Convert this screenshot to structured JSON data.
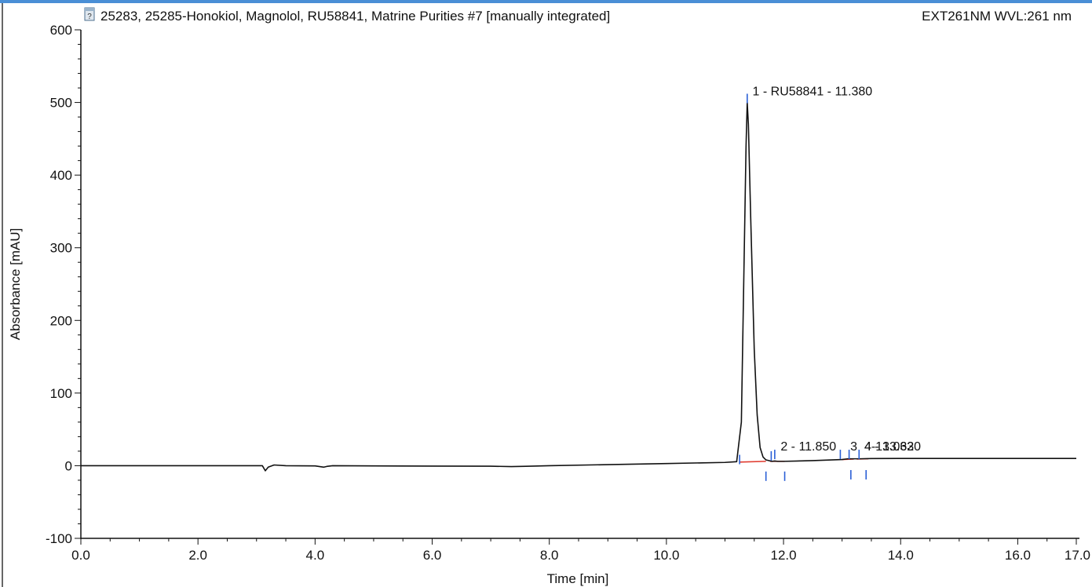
{
  "chart_data": {
    "type": "line",
    "title": "25283, 25285-Honokiol, Magnolol, RU58841, Matrine Purities #7 [manually integrated]",
    "channel": "EXT261NM WVL:261 nm",
    "xlabel": "Time [min]",
    "ylabel": "Absorbance [mAU]",
    "xlim": [
      0,
      17
    ],
    "ylim": [
      -100,
      600
    ],
    "x_ticks": [
      "0.0",
      "2.0",
      "4.0",
      "6.0",
      "8.0",
      "10.0",
      "12.0",
      "14.0",
      "16.0",
      "17.0"
    ],
    "y_ticks": [
      "600",
      "500",
      "400",
      "300",
      "200",
      "100",
      "0",
      "-100"
    ],
    "colors": {
      "trace": "#111111",
      "baseline": "#e03a2e",
      "marker": "#2a5fd6",
      "axis": "#111111",
      "top_band": "#4a8fd6"
    },
    "series": [
      {
        "x": [
          0,
          2,
          3.1,
          3.15,
          3.2,
          3.3,
          3.5,
          4.0,
          4.15,
          4.2,
          4.3,
          5.0,
          6.0,
          7.0,
          7.35,
          7.6,
          8.0,
          9.0,
          10.0,
          11.0,
          11.2,
          11.28,
          11.32,
          11.36,
          11.38,
          11.4,
          11.44,
          11.5,
          11.55,
          11.6,
          11.65,
          11.7,
          11.8,
          11.85,
          11.9,
          12.0,
          12.5,
          13.0,
          13.1,
          13.3,
          13.5,
          14.0,
          15.0,
          16.0,
          17.0
        ],
        "y": [
          0,
          0,
          0,
          -7,
          -2,
          1,
          0,
          -0.3,
          -2,
          -1,
          0,
          -0.3,
          -0.5,
          -0.7,
          -1.2,
          -0.8,
          0,
          1.5,
          3,
          4.5,
          5.5,
          60,
          250,
          440,
          500,
          470,
          340,
          160,
          70,
          25,
          12,
          8,
          6,
          6.5,
          6,
          6,
          7,
          8.5,
          9.5,
          9.5,
          9.8,
          10,
          10,
          10,
          10
        ]
      }
    ],
    "baselines": [
      {
        "x": [
          11.25,
          11.7
        ],
        "y": [
          5,
          6
        ]
      },
      {
        "x": [
          11.77,
          12.02
        ],
        "y": [
          6,
          6
        ]
      },
      {
        "x": [
          13.0,
          13.2
        ],
        "y": [
          8.5,
          9.2
        ]
      },
      {
        "x": [
          13.25,
          13.45
        ],
        "y": [
          9.2,
          9.5
        ]
      }
    ],
    "peak_markers": [
      {
        "x": 11.25,
        "y": 15,
        "dir": "up"
      },
      {
        "x": 11.38,
        "y": 512,
        "dir": "up"
      },
      {
        "x": 11.7,
        "y": -8,
        "dir": "down"
      },
      {
        "x": 11.79,
        "y": 20,
        "dir": "up"
      },
      {
        "x": 11.85,
        "y": 22,
        "dir": "up"
      },
      {
        "x": 12.02,
        "y": -8,
        "dir": "down"
      },
      {
        "x": 12.97,
        "y": 22,
        "dir": "up"
      },
      {
        "x": 13.12,
        "y": 22,
        "dir": "up"
      },
      {
        "x": 13.15,
        "y": -6,
        "dir": "down"
      },
      {
        "x": 13.29,
        "y": 22,
        "dir": "up"
      },
      {
        "x": 13.41,
        "y": -6,
        "dir": "down"
      }
    ],
    "peak_labels": [
      {
        "text": "1 - RU58841 - 11.380",
        "x": 11.47,
        "y": 510
      },
      {
        "text": "2 - 11.850",
        "x": 11.95,
        "y": 21
      },
      {
        "text": "3",
        "x": 13.14,
        "y": 21
      },
      {
        "text": "4 - 13.320",
        "x": 13.38,
        "y": 21
      },
      {
        "text": "4-13.063",
        "x": 13.38,
        "y": 21
      }
    ]
  }
}
